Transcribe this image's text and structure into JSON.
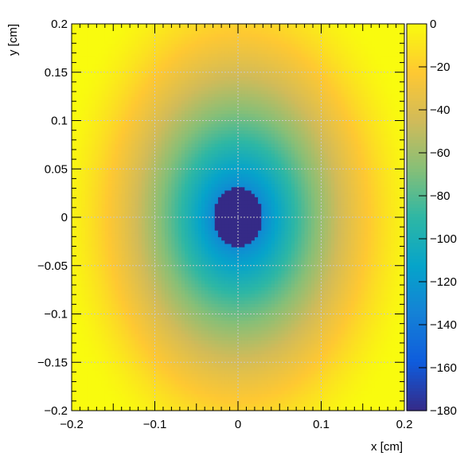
{
  "chart_data": {
    "type": "heatmap",
    "title": "",
    "xlabel": "x [cm]",
    "ylabel": "y [cm]",
    "xlim": [
      -0.2,
      0.2
    ],
    "ylim": [
      -0.2,
      0.2
    ],
    "zlim": [
      -180,
      0
    ],
    "x_ticks": [
      -0.2,
      -0.1,
      0,
      0.1,
      0.2
    ],
    "x_tick_labels": [
      "−0.2",
      "−0.1",
      "0",
      "0.1",
      "0.2"
    ],
    "y_ticks": [
      -0.2,
      -0.15,
      -0.1,
      -0.05,
      0,
      0.05,
      0.1,
      0.15,
      0.2
    ],
    "y_tick_labels": [
      "−0.2",
      "−0.15",
      "−0.1",
      "−0.05",
      "0",
      "0.05",
      "0.1",
      "0.15",
      "0.2"
    ],
    "colorbar_ticks": [
      0,
      -20,
      -40,
      -60,
      -80,
      -100,
      -120,
      -140,
      -160,
      -180
    ],
    "colorbar_tick_labels": [
      "0",
      "−20",
      "−40",
      "−60",
      "−80",
      "−100",
      "−120",
      "−140",
      "−160",
      "−180"
    ],
    "grid": true,
    "colormap": "parula",
    "field": {
      "center": [
        0,
        0
      ],
      "core_value": -180,
      "core_semi_axes": [
        0.03,
        0.03
      ],
      "rim_value": 0,
      "rim_semi_axes": [
        0.22,
        0.27
      ]
    }
  },
  "colors": {
    "grid": "#c8c8c8",
    "axis": "#000000",
    "parula": [
      "#352a87",
      "#0f5cdd",
      "#1481d6",
      "#06a4ca",
      "#2eb7a4",
      "#87bf77",
      "#d1bb59",
      "#fec832",
      "#f9fb0e"
    ]
  }
}
